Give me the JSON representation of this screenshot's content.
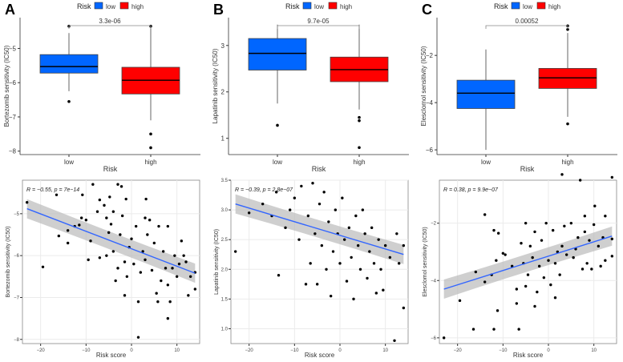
{
  "chart_data": [
    {
      "panel": "A",
      "type": "box",
      "legend_title": "Risk",
      "legend": [
        {
          "label": "low",
          "color": "#0066ff"
        },
        {
          "label": "high",
          "color": "#ff0000"
        }
      ],
      "categories": [
        "low",
        "high"
      ],
      "xlabel": "Risk",
      "ylabel": "Bortezomib sensitivity (IC50)",
      "ylim": [
        -8.1,
        -4.1
      ],
      "yticks": [
        -8,
        -7,
        -6,
        -5
      ],
      "pvalue": "3.3e-06",
      "boxes": [
        {
          "q1": -5.72,
          "median": -5.53,
          "q3": -5.18,
          "lo": -6.25,
          "hi": -4.55,
          "outliers": [
            -4.35,
            -6.55
          ]
        },
        {
          "q1": -6.33,
          "median": -5.93,
          "q3": -5.55,
          "lo": -7.1,
          "hi": -4.35,
          "outliers": [
            -4.35,
            -7.5,
            -7.9
          ]
        }
      ]
    },
    {
      "panel": "B",
      "type": "box",
      "legend_title": "Risk",
      "legend": [
        {
          "label": "low",
          "color": "#0066ff"
        },
        {
          "label": "high",
          "color": "#ff0000"
        }
      ],
      "categories": [
        "low",
        "high"
      ],
      "xlabel": "Risk",
      "ylabel": "Lapatinib sensitivity (IC50)",
      "ylim": [
        0.65,
        3.6
      ],
      "yticks": [
        1,
        2,
        3
      ],
      "pvalue": "9.7e-05",
      "boxes": [
        {
          "q1": 2.47,
          "median": 2.83,
          "q3": 3.15,
          "lo": 1.75,
          "hi": 3.45,
          "outliers": [
            1.28
          ]
        },
        {
          "q1": 2.22,
          "median": 2.48,
          "q3": 2.75,
          "lo": 1.62,
          "hi": 3.45,
          "outliers": [
            1.45,
            1.38,
            0.8
          ]
        }
      ]
    },
    {
      "panel": "C",
      "type": "box",
      "legend_title": "Risk",
      "legend": [
        {
          "label": "low",
          "color": "#0066ff"
        },
        {
          "label": "high",
          "color": "#ff0000"
        }
      ],
      "categories": [
        "low",
        "high"
      ],
      "xlabel": "Risk",
      "ylabel": "Elesclomol sensitivity (IC50)",
      "ylim": [
        -6.2,
        -0.4
      ],
      "yticks": [
        -6,
        -4,
        -2
      ],
      "pvalue": "0.00052",
      "boxes": [
        {
          "q1": -4.25,
          "median": -3.6,
          "q3": -3.05,
          "lo": -6.0,
          "hi": -1.75,
          "outliers": []
        },
        {
          "q1": -3.4,
          "median": -2.95,
          "q3": -2.55,
          "lo": -4.6,
          "hi": -1.05,
          "outliers": [
            -0.75,
            -0.9,
            -4.9
          ]
        }
      ]
    },
    {
      "panel": "A",
      "type": "scatter",
      "xlabel": "Risk score",
      "ylabel": "Bortezomib sensitivity (IC50)",
      "xlim": [
        -24,
        15
      ],
      "ylim": [
        -8.1,
        -4.2
      ],
      "xticks": [
        -20,
        -10,
        0,
        10
      ],
      "yticks": [
        -8,
        -7,
        -6,
        -5
      ],
      "annotation": "R = −0.55, p = 7e−14",
      "fit": {
        "x": [
          -23,
          14
        ],
        "y": [
          -4.88,
          -6.42
        ]
      },
      "points": [
        [
          -23,
          -4.73
        ],
        [
          -19.5,
          -6.27
        ],
        [
          -16.5,
          -4.55
        ],
        [
          -16,
          -5.53
        ],
        [
          -14,
          -5.4
        ],
        [
          -14,
          -5.7
        ],
        [
          -12.5,
          -5.3
        ],
        [
          -11.5,
          -5.27
        ],
        [
          -11,
          -5.1
        ],
        [
          -10.8,
          -4.55
        ],
        [
          -10,
          -5.15
        ],
        [
          -9.5,
          -6.1
        ],
        [
          -9,
          -5.65
        ],
        [
          -8.5,
          -4.3
        ],
        [
          -7.5,
          -4.95
        ],
        [
          -7,
          -4.67
        ],
        [
          -7,
          -6.05
        ],
        [
          -6,
          -4.8
        ],
        [
          -5.5,
          -5.1
        ],
        [
          -5.5,
          -6
        ],
        [
          -5,
          -5.45
        ],
        [
          -4.8,
          -4.6
        ],
        [
          -4.5,
          -5.25
        ],
        [
          -4,
          -4.95
        ],
        [
          -4,
          -5.9
        ],
        [
          -3.5,
          -6.6
        ],
        [
          -3,
          -6.3
        ],
        [
          -3,
          -4.3
        ],
        [
          -2.5,
          -5.5
        ],
        [
          -2.2,
          -4.35
        ],
        [
          -2,
          -5.05
        ],
        [
          -1.5,
          -6.15
        ],
        [
          -1.5,
          -6.95
        ],
        [
          -1.2,
          -4.65
        ],
        [
          -1,
          -6.5
        ],
        [
          -0.5,
          -5.8
        ],
        [
          0,
          -5.6
        ],
        [
          0.5,
          -6.2
        ],
        [
          1,
          -5.3
        ],
        [
          1.5,
          -7.1
        ],
        [
          1.5,
          -7.95
        ],
        [
          2,
          -6.4
        ],
        [
          2.5,
          -5.9
        ],
        [
          3,
          -5.1
        ],
        [
          3,
          -6.1
        ],
        [
          3.2,
          -4.65
        ],
        [
          3.5,
          -5.5
        ],
        [
          4,
          -5.15
        ],
        [
          4.5,
          -6.35
        ],
        [
          5,
          -5.7
        ],
        [
          5.5,
          -6.9
        ],
        [
          5.8,
          -7.1
        ],
        [
          6,
          -5.3
        ],
        [
          6.5,
          -6.6
        ],
        [
          7,
          -5.9
        ],
        [
          7.5,
          -6.3
        ],
        [
          8,
          -6.7
        ],
        [
          8,
          -5.3
        ],
        [
          8,
          -7.5
        ],
        [
          8.5,
          -7.1
        ],
        [
          9,
          -6.3
        ],
        [
          9.5,
          -6.0
        ],
        [
          10,
          -6.5
        ],
        [
          10.5,
          -6.2
        ],
        [
          11,
          -5.65
        ],
        [
          11.5,
          -6.0
        ],
        [
          12,
          -6.15
        ],
        [
          12.5,
          -6.95
        ],
        [
          13,
          -6.5
        ],
        [
          14,
          -6.4
        ],
        [
          14,
          -6.8
        ]
      ]
    },
    {
      "panel": "B",
      "type": "scatter",
      "xlabel": "Risk score",
      "ylabel": "Lapatinib sensitivity (IC50)",
      "xlim": [
        -24,
        15
      ],
      "ylim": [
        0.75,
        3.5
      ],
      "xticks": [
        -20,
        -10,
        0,
        10
      ],
      "yticks": [
        1.0,
        1.5,
        2.0,
        2.5,
        3.0,
        3.5
      ],
      "annotation": "R = −0.39, p = 2.8e−07",
      "fit": {
        "x": [
          -23,
          14
        ],
        "y": [
          3.1,
          2.25
        ]
      },
      "points": [
        [
          -23,
          2.3
        ],
        [
          -20,
          2.95
        ],
        [
          -17,
          3.1
        ],
        [
          -15,
          2.9
        ],
        [
          -14,
          3.3
        ],
        [
          -13.5,
          1.9
        ],
        [
          -12,
          2.7
        ],
        [
          -11,
          3.0
        ],
        [
          -10,
          3.2
        ],
        [
          -9,
          2.5
        ],
        [
          -8.5,
          3.4
        ],
        [
          -7.5,
          1.75
        ],
        [
          -7,
          2.9
        ],
        [
          -6.5,
          2.1
        ],
        [
          -6,
          3.45
        ],
        [
          -5.5,
          2.6
        ],
        [
          -5,
          1.75
        ],
        [
          -4.5,
          3.1
        ],
        [
          -4,
          2.4
        ],
        [
          -3.5,
          3.3
        ],
        [
          -3,
          2.0
        ],
        [
          -2.5,
          2.8
        ],
        [
          -2,
          1.55
        ],
        [
          -1.5,
          2.3
        ],
        [
          -1,
          3.0
        ],
        [
          -0.5,
          2.6
        ],
        [
          0,
          2.1
        ],
        [
          0.5,
          3.2
        ],
        [
          1,
          2.5
        ],
        [
          1.5,
          1.8
        ],
        [
          2,
          2.7
        ],
        [
          2.5,
          2.2
        ],
        [
          3,
          1.5
        ],
        [
          3.5,
          2.9
        ],
        [
          4,
          2.4
        ],
        [
          4.5,
          2.0
        ],
        [
          5,
          3.0
        ],
        [
          5.5,
          2.6
        ],
        [
          6,
          1.85
        ],
        [
          6.5,
          2.3
        ],
        [
          7,
          2.7
        ],
        [
          7.5,
          2.1
        ],
        [
          8,
          1.6
        ],
        [
          8.5,
          2.5
        ],
        [
          9,
          2.0
        ],
        [
          9.5,
          1.65
        ],
        [
          10,
          2.4
        ],
        [
          11,
          2.2
        ],
        [
          12,
          0.8
        ],
        [
          12.5,
          2.6
        ],
        [
          13,
          2.1
        ],
        [
          14,
          1.35
        ],
        [
          14,
          2.4
        ]
      ]
    },
    {
      "panel": "C",
      "type": "scatter",
      "xlabel": "Risk score",
      "ylabel": "Elesclomol sensitivity (IC50)",
      "xlim": [
        -24,
        15
      ],
      "ylim": [
        -6.2,
        -0.5
      ],
      "xticks": [
        -20,
        -10,
        0,
        10
      ],
      "yticks": [
        -6,
        -4,
        -2
      ],
      "annotation": "R = 0.38, p = 9.9e−07",
      "fit": {
        "x": [
          -23,
          14
        ],
        "y": [
          -4.3,
          -2.45
        ]
      },
      "points": [
        [
          -23,
          -6
        ],
        [
          -19.5,
          -4.7
        ],
        [
          -16.5,
          -5.7
        ],
        [
          -16,
          -3.7
        ],
        [
          -14,
          -1.7
        ],
        [
          -14,
          -4.05
        ],
        [
          -12.5,
          -3.8
        ],
        [
          -12,
          -2.25
        ],
        [
          -12,
          -5.7
        ],
        [
          -11.5,
          -3.3
        ],
        [
          -11.2,
          -5.05
        ],
        [
          -11,
          -2.35
        ],
        [
          -10,
          -3.05
        ],
        [
          -9.5,
          -3.1
        ],
        [
          -8,
          -3.5
        ],
        [
          -7,
          -4.3
        ],
        [
          -7,
          -4.8
        ],
        [
          -6.5,
          -5.7
        ],
        [
          -6,
          -2.7
        ],
        [
          -5.5,
          -3.4
        ],
        [
          -5,
          -2.0
        ],
        [
          -5,
          -4.2
        ],
        [
          -4.5,
          -3.8
        ],
        [
          -4,
          -2.8
        ],
        [
          -3.5,
          -3.2
        ],
        [
          -3,
          -4.9
        ],
        [
          -3,
          -2.3
        ],
        [
          -2.5,
          -4.4
        ],
        [
          -2,
          -3.5
        ],
        [
          -1.5,
          -2.6
        ],
        [
          -1,
          -3.9
        ],
        [
          -0.5,
          -2.0
        ],
        [
          0,
          -3.3
        ],
        [
          0.5,
          -4.15
        ],
        [
          1,
          -2.25
        ],
        [
          1.5,
          -4.6
        ],
        [
          1.5,
          -3.4
        ],
        [
          2,
          -3.0
        ],
        [
          2.5,
          -3.8
        ],
        [
          3,
          -2.8
        ],
        [
          3,
          -0.3
        ],
        [
          3.5,
          -2.1
        ],
        [
          4,
          -3.1
        ],
        [
          5,
          -2.0
        ],
        [
          5.5,
          -3.2
        ],
        [
          6,
          -2.9
        ],
        [
          6.5,
          -2.5
        ],
        [
          7,
          -0.5
        ],
        [
          7.5,
          -3.6
        ],
        [
          8,
          -1.75
        ],
        [
          8,
          -2.3
        ],
        [
          8.5,
          -3.4
        ],
        [
          9,
          -2.6
        ],
        [
          9.5,
          -3.6
        ],
        [
          10,
          -2.05
        ],
        [
          10.2,
          -1.4
        ],
        [
          11,
          -2.8
        ],
        [
          11.5,
          -3.5
        ],
        [
          12,
          -2.5
        ],
        [
          12.5,
          -1.75
        ],
        [
          12.5,
          -3.3
        ],
        [
          14,
          -0.4
        ],
        [
          14,
          -3.15
        ],
        [
          14,
          -2.55
        ]
      ]
    }
  ],
  "panel_labels": [
    "A",
    "B",
    "C"
  ]
}
